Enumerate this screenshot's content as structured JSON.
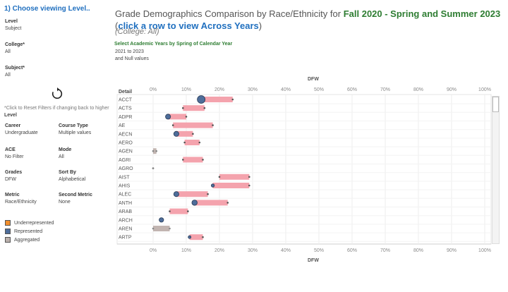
{
  "left_panel": {
    "level_title": "1) Choose viewing Level..",
    "level_label": "Level",
    "level_value": "Subject",
    "college_label": "College*",
    "college_value": "All",
    "subject_label": "Subject*",
    "subject_value": "All",
    "reset_note": "*Click to Reset Filters if changing back to higher",
    "reset_note_bold": "Level",
    "career_label": "Career",
    "career_value": "Undergraduate",
    "course_type_label": "Course Type",
    "course_type_value": "Multiple values",
    "ace_label": "ACE",
    "ace_value": "No Filter",
    "mode_label": "Mode",
    "mode_value": "All",
    "grades_label": "Grades",
    "grades_value": "DFW",
    "sort_label": "Sort By",
    "sort_value": "Alphabetical",
    "metric_label": "Metric",
    "metric_value": "Race/Ethnicity",
    "second_metric_label": "Second Metric",
    "second_metric_value": "None",
    "legend": [
      {
        "label": "Underrepresented",
        "color": "#f28e2b"
      },
      {
        "label": "Represented",
        "color": "#4e6d9a"
      },
      {
        "label": "Aggregated",
        "color": "#bab0ac"
      }
    ]
  },
  "header": {
    "title_prefix": "Grade Demographics Comparison by Race/Ethnicity for ",
    "title_highlight": "Fall 2020 - Spring and Summer 2023",
    "paren_open": "(",
    "link_text": "click a row to view Across Years",
    "paren_close": ")",
    "college_line": "(College: All)",
    "select_years_label": "Select Academic Years by Spring of Calendar Year",
    "select_years_value1": "2021 to 2023",
    "select_years_value2": "and Null values"
  },
  "chart_data": {
    "type": "dumbbell",
    "title": "DFW",
    "xlabel": "DFW",
    "row_header": "Detail",
    "xlim": [
      0,
      100
    ],
    "ticks": [
      "0%",
      "10%",
      "20%",
      "30%",
      "40%",
      "50%",
      "60%",
      "70%",
      "80%",
      "90%",
      "100%"
    ],
    "colors": {
      "bar": "#f4a3ad",
      "aggregated_bar": "#c2b5b1",
      "circle": "#4e6d9a",
      "end_dot": "#555555",
      "agg_dot": "#888888"
    },
    "rows": [
      {
        "label": "ACCT",
        "start": 14.5,
        "end": 24,
        "represented": 14.5,
        "size": 5.5
      },
      {
        "label": "ACTS",
        "start": 9,
        "end": 15.5,
        "represented": null,
        "size": 0
      },
      {
        "label": "ADPR",
        "start": 4.5,
        "end": 10,
        "represented": 4.5,
        "size": 3.6
      },
      {
        "label": "AE",
        "start": 6,
        "end": 18,
        "represented": null,
        "size": 0
      },
      {
        "label": "AECN",
        "start": 7,
        "end": 12,
        "represented": 7,
        "size": 3.6
      },
      {
        "label": "AERO",
        "start": 9.5,
        "end": 14,
        "represented": null,
        "size": 0
      },
      {
        "label": "AGEN",
        "start": 0,
        "end": 1,
        "aggregated": true,
        "represented": null,
        "size": 0
      },
      {
        "label": "AGRI",
        "start": 9,
        "end": 15,
        "represented": null,
        "size": 0
      },
      {
        "label": "AGRO",
        "start": 0,
        "end": 0,
        "aggregated": true,
        "represented": null,
        "size": 0
      },
      {
        "label": "AIST",
        "start": 20,
        "end": 29,
        "represented": null,
        "size": 0
      },
      {
        "label": "AHIS",
        "start": 18,
        "end": 29,
        "represented": 18,
        "size": 2.2
      },
      {
        "label": "ALEC",
        "start": 7,
        "end": 16.5,
        "represented": 7,
        "size": 3.6
      },
      {
        "label": "ANTH",
        "start": 12.5,
        "end": 22.5,
        "represented": 12.5,
        "size": 3.8
      },
      {
        "label": "ARAB",
        "start": 5,
        "end": 10.5,
        "represented": null,
        "size": 0
      },
      {
        "label": "ARCH",
        "start": 2.5,
        "end": 2.5,
        "represented": 2.5,
        "size": 3.2
      },
      {
        "label": "AREN",
        "start": 0,
        "end": 5,
        "aggregated": true,
        "represented": null,
        "size": 0
      },
      {
        "label": "ARTP",
        "start": 11,
        "end": 15,
        "represented": 11,
        "size": 2.0
      }
    ]
  }
}
